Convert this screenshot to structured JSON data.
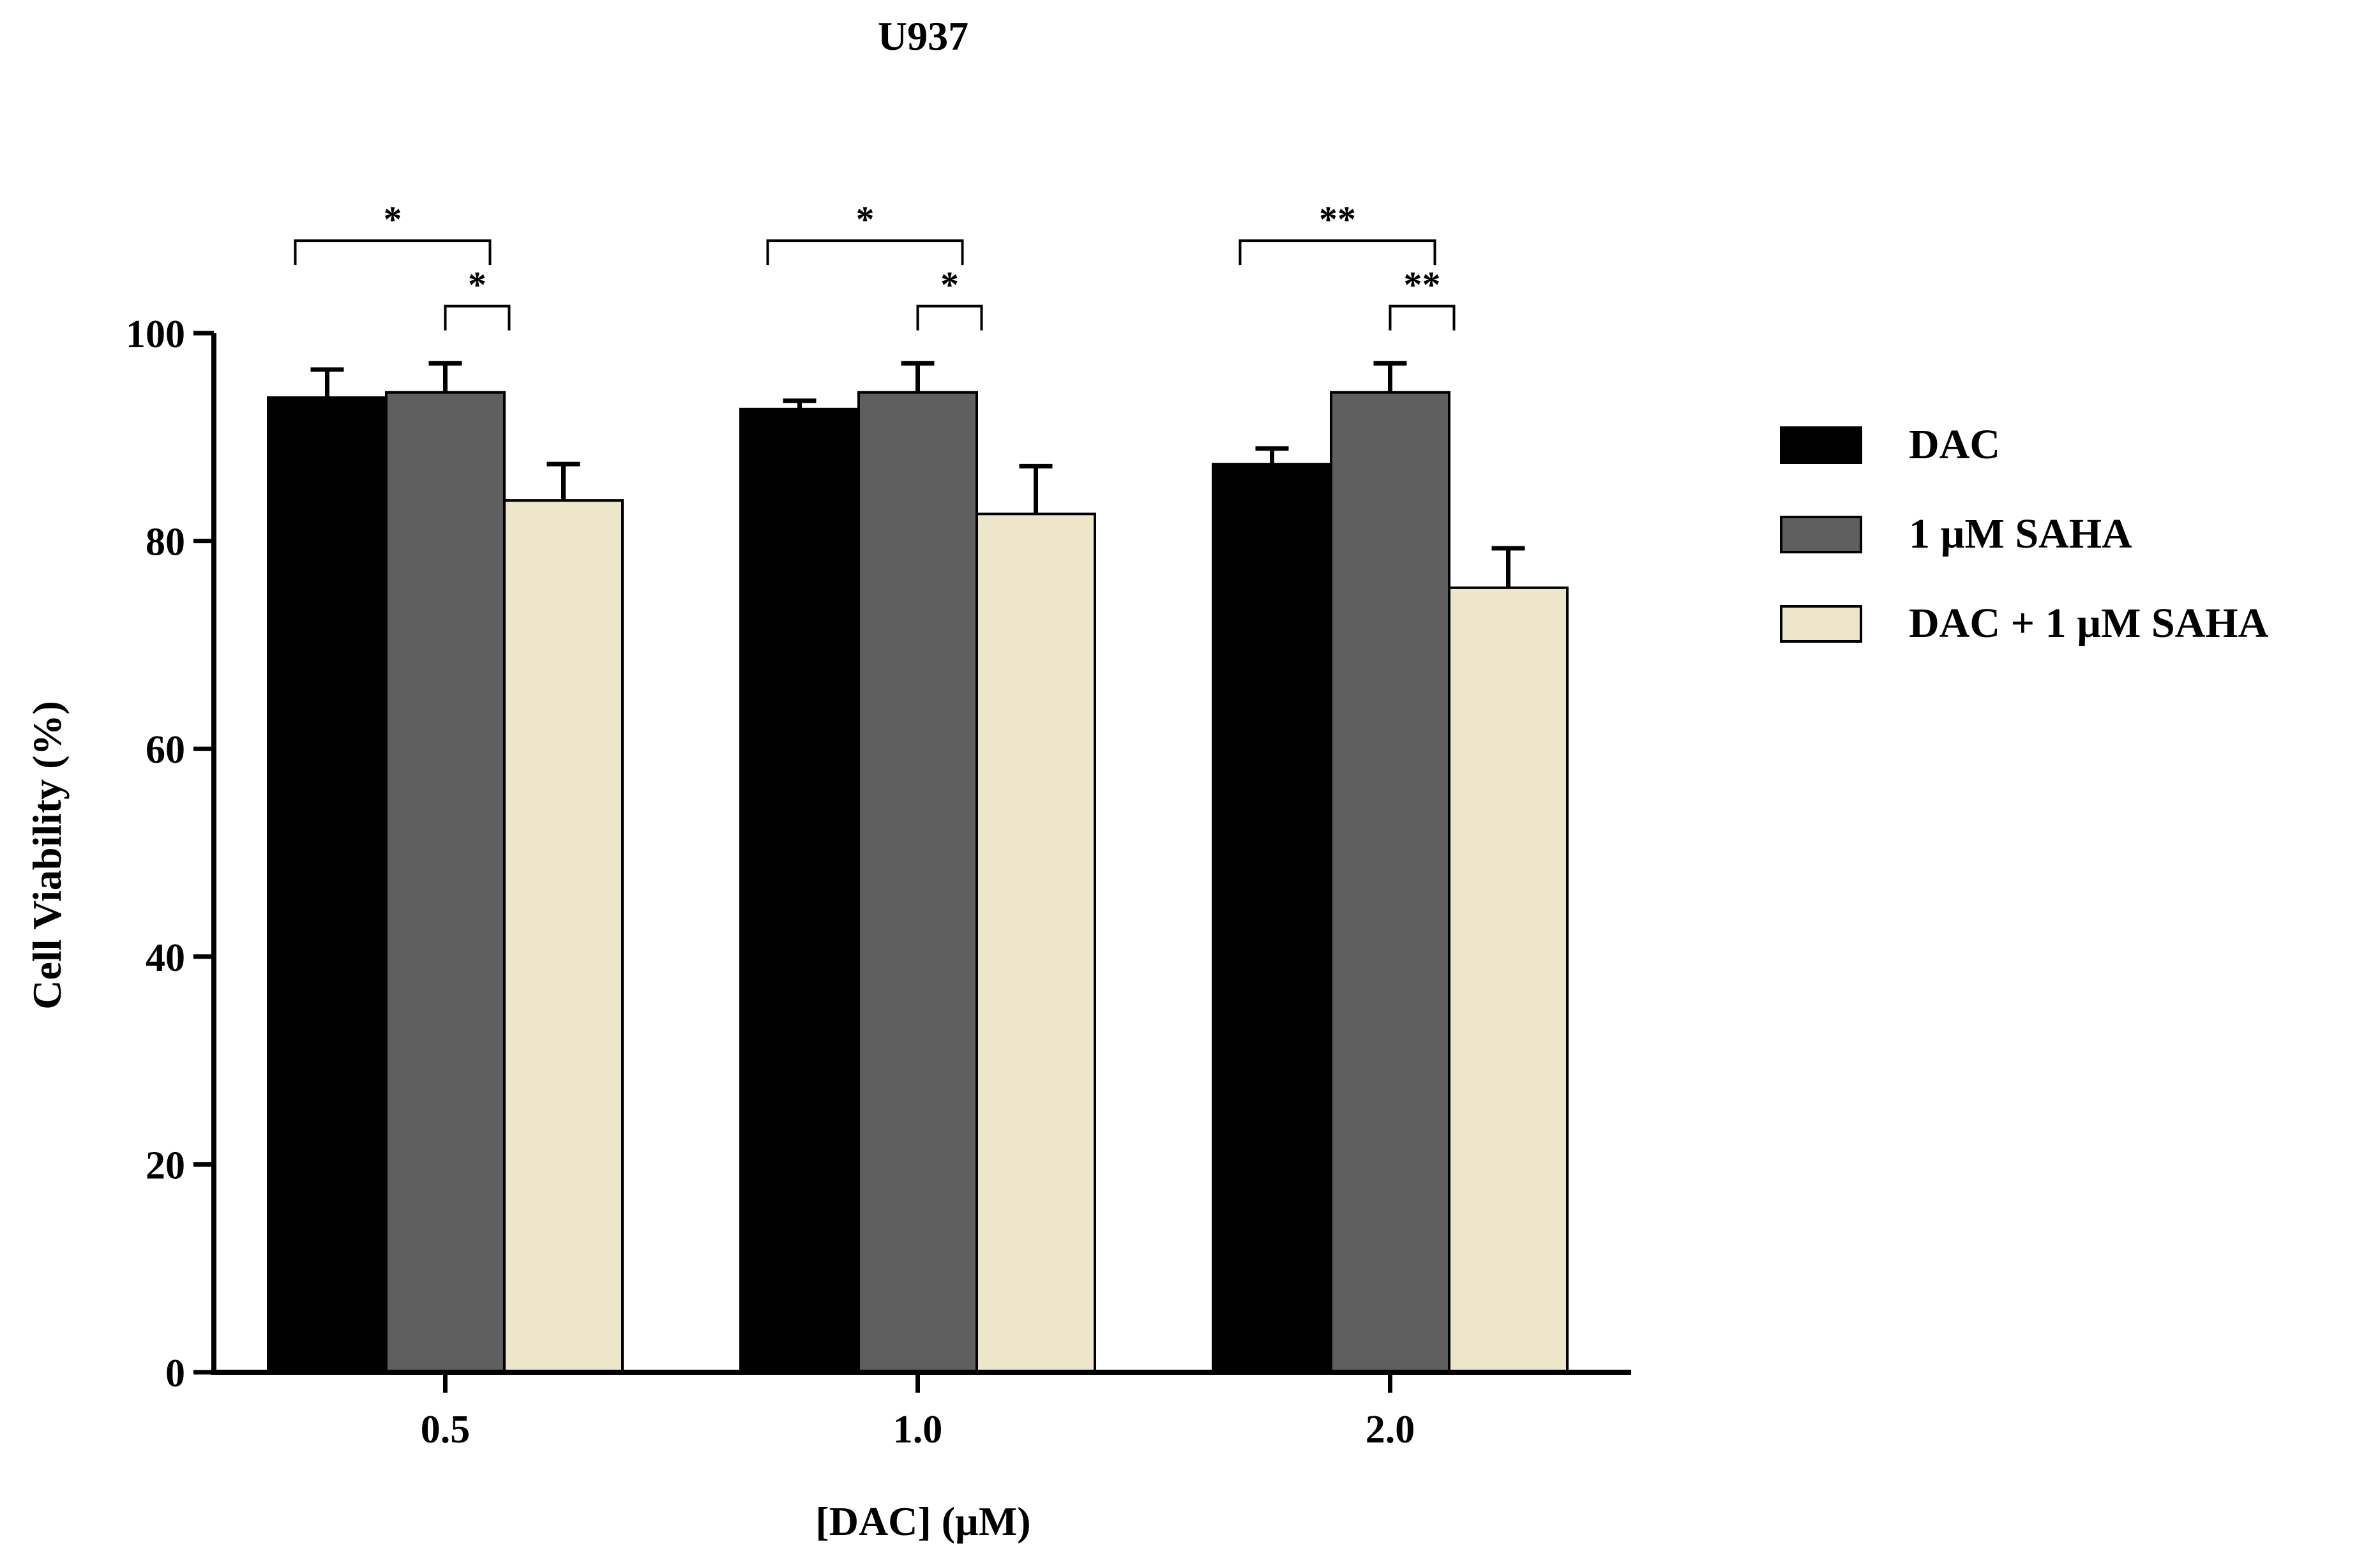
{
  "chart_data": {
    "type": "bar",
    "title": "U937",
    "xlabel": "[DAC] (µM)",
    "ylabel": "Cell Viability (%)",
    "categories": [
      "0.5",
      "1.0",
      "2.0"
    ],
    "ylim": [
      0,
      100
    ],
    "yticks": [
      "0",
      "20",
      "40",
      "60",
      "80",
      "100"
    ],
    "grid": false,
    "legend_position": "right",
    "series": [
      {
        "name": "DAC",
        "color": "#000000",
        "values": [
          93.8,
          92.7,
          87.4
        ],
        "errors": [
          2.7,
          0.8,
          1.5
        ]
      },
      {
        "name": "1 µM SAHA",
        "color": "#5f5f5f",
        "values": [
          94.3,
          94.3,
          94.3
        ],
        "errors": [
          2.8,
          2.8,
          2.8
        ]
      },
      {
        "name": "DAC + 1 µM SAHA",
        "color": "#ede6cb",
        "values": [
          83.9,
          82.6,
          75.5
        ],
        "errors": [
          3.5,
          4.6,
          3.8
        ]
      }
    ],
    "annotations": [
      {
        "group": 0,
        "from_series": 0,
        "to_series": 2,
        "label": "*"
      },
      {
        "group": 0,
        "from_series": 1,
        "to_series": 2,
        "label": "*"
      },
      {
        "group": 1,
        "from_series": 0,
        "to_series": 2,
        "label": "*"
      },
      {
        "group": 1,
        "from_series": 1,
        "to_series": 2,
        "label": "*"
      },
      {
        "group": 2,
        "from_series": 0,
        "to_series": 2,
        "label": "**"
      },
      {
        "group": 2,
        "from_series": 1,
        "to_series": 2,
        "label": "**"
      }
    ]
  }
}
